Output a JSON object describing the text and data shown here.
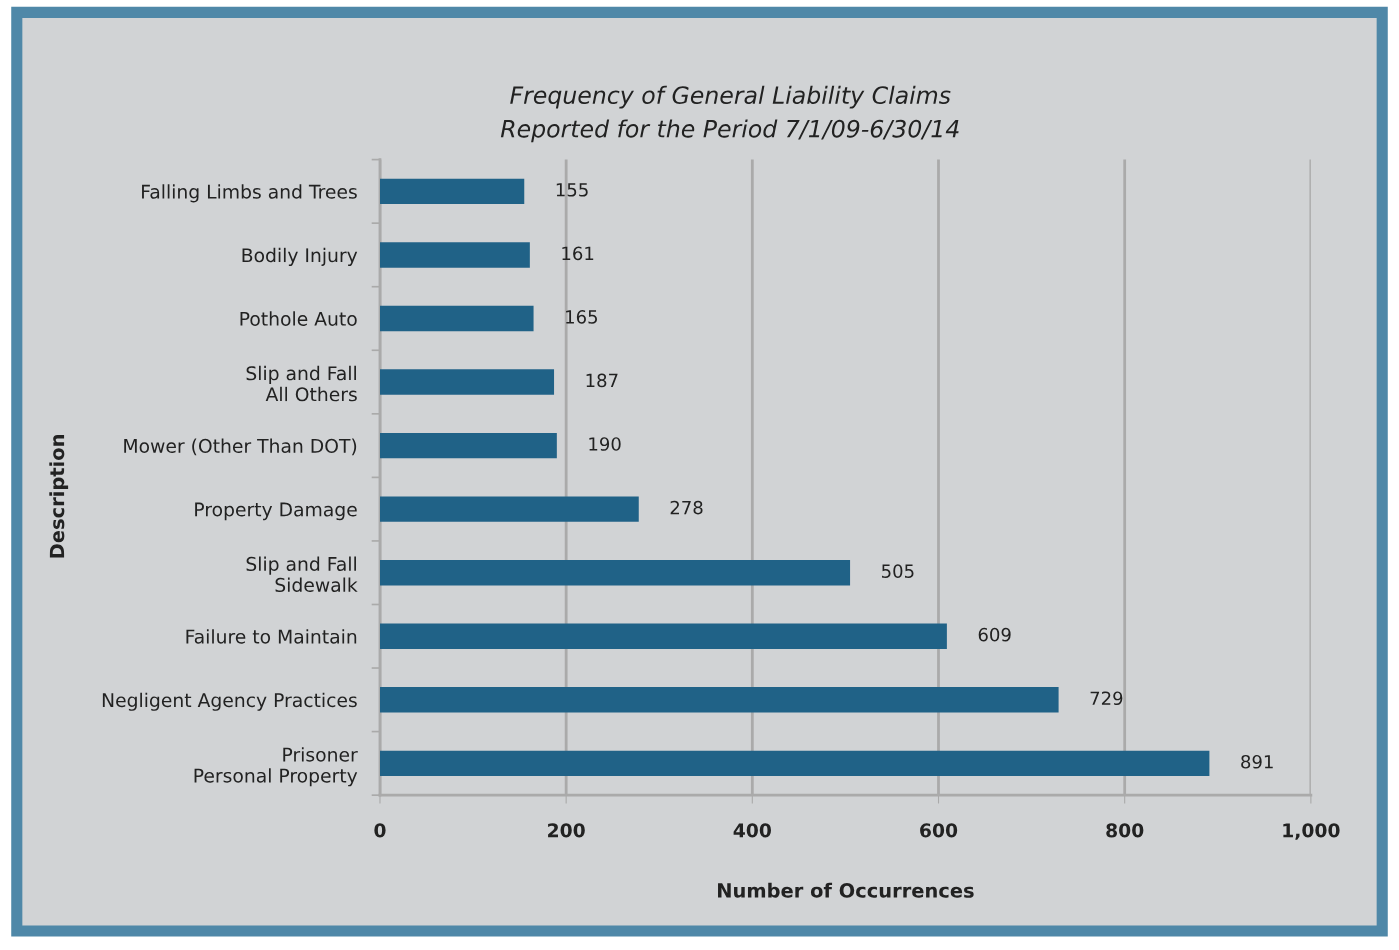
{
  "chart_data": {
    "type": "bar",
    "orientation": "horizontal",
    "title": "Frequency of General Liability Claims\nReported for the Period 7/1/09-6/30/14",
    "xlabel": "Number of Occurrences",
    "ylabel": "Description",
    "categories": [
      "Falling Limbs and Trees",
      "Bodily Injury",
      "Pothole Auto",
      "Slip and Fall\nAll Others",
      "Mower (Other Than DOT)",
      "Property Damage",
      "Slip and Fall\nSidewalk",
      "Failure to Maintain",
      "Negligent Agency Practices",
      "Prisoner\nPersonal Property"
    ],
    "values": [
      155,
      161,
      165,
      187,
      190,
      278,
      505,
      609,
      729,
      891
    ],
    "color": "#206287",
    "data_labels": true,
    "xlim": [
      0,
      1000
    ],
    "xticks": [
      0,
      200,
      400,
      600,
      800,
      {
        "value": 1000,
        "label": "1,000"
      }
    ],
    "grid": "x",
    "legend": false
  }
}
